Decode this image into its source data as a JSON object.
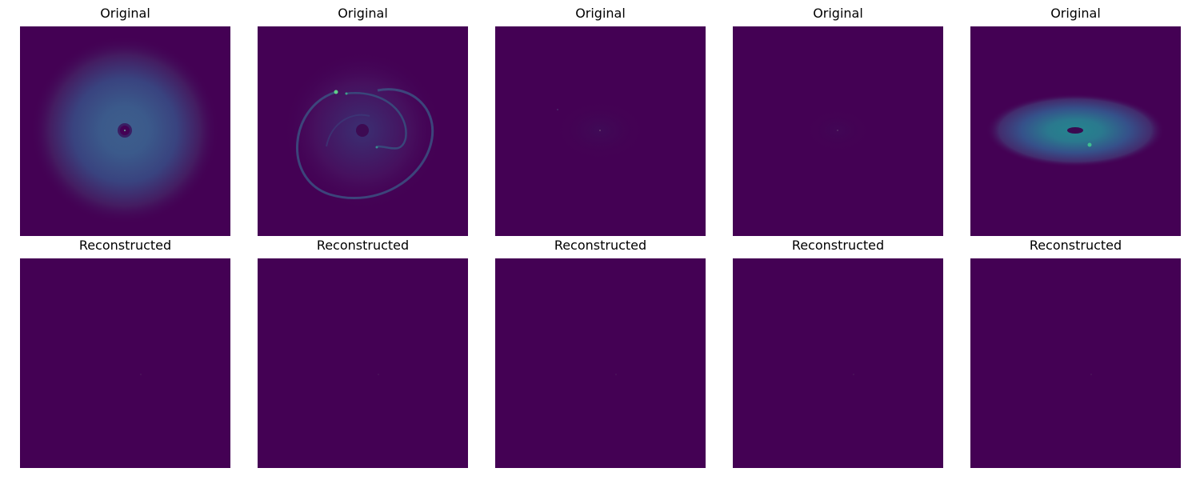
{
  "panels": [
    {
      "title": "Original",
      "image": "bright disk with dark central hole"
    },
    {
      "title": "Original",
      "image": "spiral arm structure"
    },
    {
      "title": "Original",
      "image": "faint dark disk"
    },
    {
      "title": "Original",
      "image": "very faint disk"
    },
    {
      "title": "Original",
      "image": "bright edge-on elliptical disk"
    },
    {
      "title": "Reconstructed",
      "image": "uniform dark field"
    },
    {
      "title": "Reconstructed",
      "image": "uniform dark field"
    },
    {
      "title": "Reconstructed",
      "image": "uniform dark field"
    },
    {
      "title": "Reconstructed",
      "image": "uniform dark field"
    },
    {
      "title": "Reconstructed",
      "image": "uniform dark field"
    }
  ],
  "colors": {
    "background": "#440154",
    "disk_glow": "#3b518b",
    "bright_disk": "#23888e",
    "highlight": "#35b779"
  }
}
